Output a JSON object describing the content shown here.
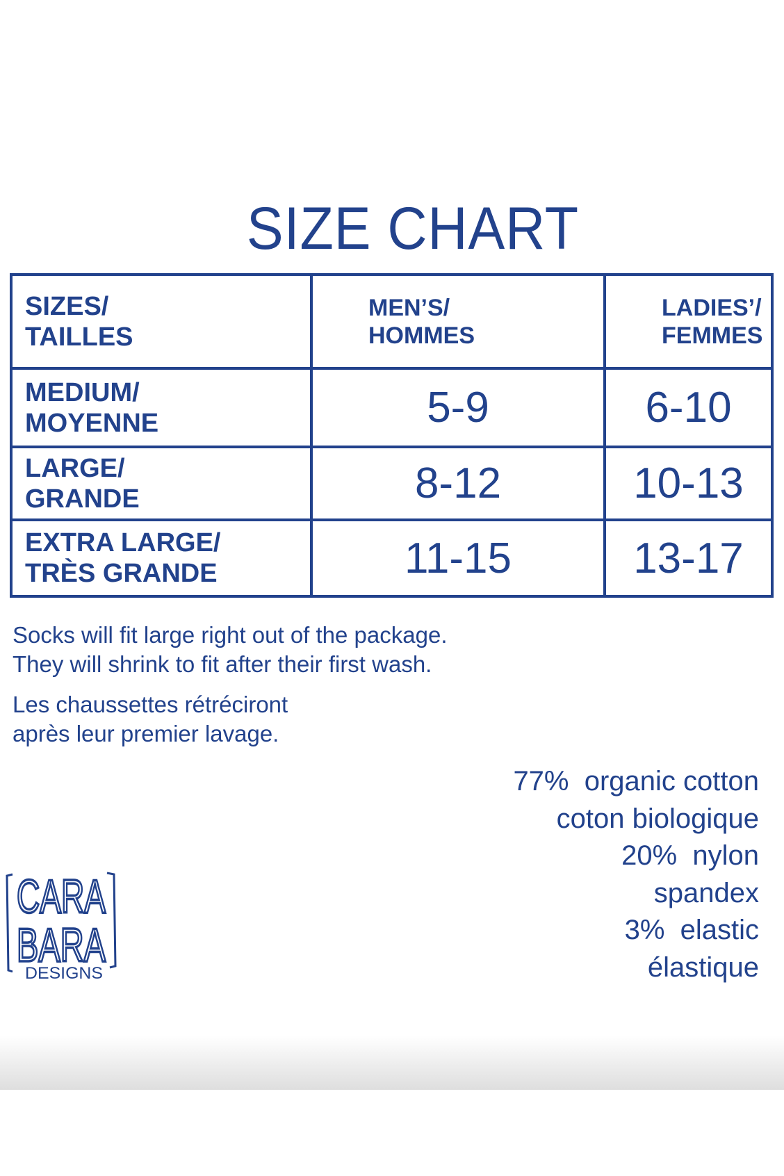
{
  "title": "SIZE CHART",
  "table": {
    "headers": [
      "SIZES/\nTAILLES",
      "MEN’S/\nHOMMES",
      "LADIES’/\nFEMMES"
    ],
    "header_lines": [
      [
        "SIZES/",
        "TAILLES"
      ],
      [
        "MEN’S/",
        "HOMMES"
      ],
      [
        "LADIES’/",
        "FEMMES"
      ]
    ],
    "rows": [
      {
        "size": [
          "MEDIUM/",
          "MOYENNE"
        ],
        "mens": "5-9",
        "ladies": "6-10"
      },
      {
        "size": [
          "LARGE/",
          "GRANDE"
        ],
        "mens": "8-12",
        "ladies": "10-13"
      },
      {
        "size": [
          "EXTRA LARGE/",
          "TRÈS GRANDE"
        ],
        "mens": "11-15",
        "ladies": "13-17"
      }
    ]
  },
  "notes": {
    "en": [
      "Socks will fit large right out of the package.",
      "They will shrink to fit after their first wash."
    ],
    "fr": [
      "Les chaussettes rétréciront",
      "après leur premier lavage."
    ]
  },
  "composition": [
    "77%  organic cotton",
    "coton biologique",
    "20%  nylon",
    "spandex",
    "3%  elastic",
    "élastique"
  ],
  "logo": {
    "lines": [
      "CARA",
      "BARA",
      "DESIGNS"
    ]
  },
  "colors": {
    "brand": "#22428c"
  }
}
